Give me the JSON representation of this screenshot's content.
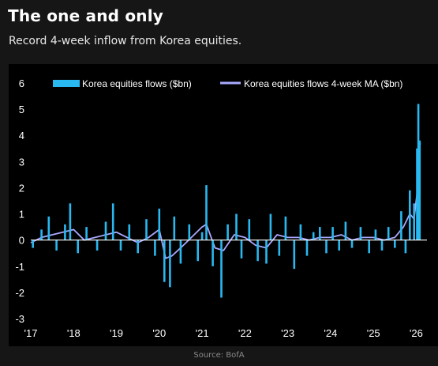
{
  "header": {
    "title": "The one and only",
    "subtitle": "Record 4-week inflow from Korea equities."
  },
  "footer": {
    "source": "Source: BofA"
  },
  "colors": {
    "background": "#161616",
    "panel": "#000000",
    "bars": "#29b8f0",
    "ma_line": "#a9a9ff",
    "zero_line": "#ffffff"
  },
  "chart_data": {
    "type": "bar",
    "title": "",
    "xlabel": "",
    "ylabel": "",
    "ylim": [
      -3,
      6
    ],
    "yticks": [
      6,
      5,
      4,
      3,
      2,
      1,
      0,
      -1,
      -2,
      -3
    ],
    "xlim": [
      2017.0,
      2026.25
    ],
    "xticks": [
      {
        "value": 2017,
        "label": "'17"
      },
      {
        "value": 2018,
        "label": "'18"
      },
      {
        "value": 2019,
        "label": "'19"
      },
      {
        "value": 2020,
        "label": "'20"
      },
      {
        "value": 2021,
        "label": "'21"
      },
      {
        "value": 2022,
        "label": "'22"
      },
      {
        "value": 2023,
        "label": "'23"
      },
      {
        "value": 2024,
        "label": "'24"
      },
      {
        "value": 2025,
        "label": "'25"
      },
      {
        "value": 2026,
        "label": "'26"
      }
    ],
    "grid": false,
    "legend": "top",
    "series": [
      {
        "name": "Korea equities flows ($bn)",
        "kind": "bar",
        "color": "#29b8f0",
        "points": [
          [
            2017.05,
            -0.3
          ],
          [
            2017.25,
            0.4
          ],
          [
            2017.42,
            0.9
          ],
          [
            2017.6,
            -0.4
          ],
          [
            2017.8,
            0.6
          ],
          [
            2017.92,
            1.4
          ],
          [
            2018.1,
            -0.5
          ],
          [
            2018.3,
            0.5
          ],
          [
            2018.55,
            -0.4
          ],
          [
            2018.75,
            0.7
          ],
          [
            2018.92,
            1.4
          ],
          [
            2019.1,
            -0.4
          ],
          [
            2019.3,
            0.6
          ],
          [
            2019.5,
            -0.5
          ],
          [
            2019.7,
            0.8
          ],
          [
            2019.9,
            -0.6
          ],
          [
            2020.0,
            1.2
          ],
          [
            2020.12,
            -1.6
          ],
          [
            2020.25,
            -1.8
          ],
          [
            2020.35,
            0.9
          ],
          [
            2020.5,
            -0.9
          ],
          [
            2020.7,
            0.6
          ],
          [
            2020.9,
            -0.8
          ],
          [
            2021.0,
            0.3
          ],
          [
            2021.1,
            2.1
          ],
          [
            2021.25,
            -1.0
          ],
          [
            2021.45,
            -2.2
          ],
          [
            2021.6,
            0.6
          ],
          [
            2021.8,
            1.0
          ],
          [
            2021.92,
            -0.7
          ],
          [
            2022.1,
            0.8
          ],
          [
            2022.3,
            -0.8
          ],
          [
            2022.5,
            -0.9
          ],
          [
            2022.6,
            1.0
          ],
          [
            2022.8,
            -0.6
          ],
          [
            2022.95,
            0.9
          ],
          [
            2023.15,
            -1.1
          ],
          [
            2023.3,
            0.6
          ],
          [
            2023.45,
            -0.6
          ],
          [
            2023.6,
            0.3
          ],
          [
            2023.75,
            0.5
          ],
          [
            2023.9,
            -0.5
          ],
          [
            2024.05,
            0.5
          ],
          [
            2024.2,
            -0.4
          ],
          [
            2024.35,
            0.7
          ],
          [
            2024.5,
            -0.3
          ],
          [
            2024.7,
            0.5
          ],
          [
            2024.9,
            -0.5
          ],
          [
            2025.05,
            0.4
          ],
          [
            2025.2,
            -0.4
          ],
          [
            2025.35,
            0.5
          ],
          [
            2025.5,
            -0.3
          ],
          [
            2025.65,
            1.1
          ],
          [
            2025.75,
            -0.5
          ],
          [
            2025.85,
            1.9
          ],
          [
            2025.95,
            1.4
          ],
          [
            2026.02,
            3.5
          ],
          [
            2026.05,
            5.2
          ],
          [
            2026.08,
            3.8
          ]
        ]
      },
      {
        "name": "Korea equities flows 4-week MA ($bn)",
        "kind": "line",
        "color": "#a9a9ff",
        "points": [
          [
            2017.0,
            -0.1
          ],
          [
            2017.25,
            0.1
          ],
          [
            2017.5,
            0.2
          ],
          [
            2017.75,
            0.3
          ],
          [
            2018.0,
            0.4
          ],
          [
            2018.25,
            0.0
          ],
          [
            2018.5,
            0.1
          ],
          [
            2018.75,
            0.2
          ],
          [
            2019.0,
            0.3
          ],
          [
            2019.25,
            0.1
          ],
          [
            2019.5,
            -0.1
          ],
          [
            2019.75,
            0.1
          ],
          [
            2020.0,
            0.4
          ],
          [
            2020.15,
            -0.7
          ],
          [
            2020.3,
            -0.6
          ],
          [
            2020.5,
            -0.3
          ],
          [
            2020.75,
            0.1
          ],
          [
            2021.0,
            0.5
          ],
          [
            2021.1,
            0.6
          ],
          [
            2021.3,
            -0.3
          ],
          [
            2021.5,
            -0.4
          ],
          [
            2021.75,
            0.2
          ],
          [
            2022.0,
            0.1
          ],
          [
            2022.25,
            -0.2
          ],
          [
            2022.5,
            -0.3
          ],
          [
            2022.75,
            0.2
          ],
          [
            2023.0,
            0.1
          ],
          [
            2023.25,
            0.1
          ],
          [
            2023.5,
            0.0
          ],
          [
            2023.75,
            0.1
          ],
          [
            2024.0,
            0.1
          ],
          [
            2024.25,
            0.2
          ],
          [
            2024.5,
            0.0
          ],
          [
            2024.75,
            0.1
          ],
          [
            2025.0,
            0.1
          ],
          [
            2025.25,
            0.0
          ],
          [
            2025.5,
            0.1
          ],
          [
            2025.7,
            0.5
          ],
          [
            2025.85,
            1.0
          ],
          [
            2025.95,
            0.8
          ],
          [
            2026.02,
            1.8
          ],
          [
            2026.06,
            3.6
          ],
          [
            2026.1,
            3.7
          ]
        ]
      }
    ]
  }
}
